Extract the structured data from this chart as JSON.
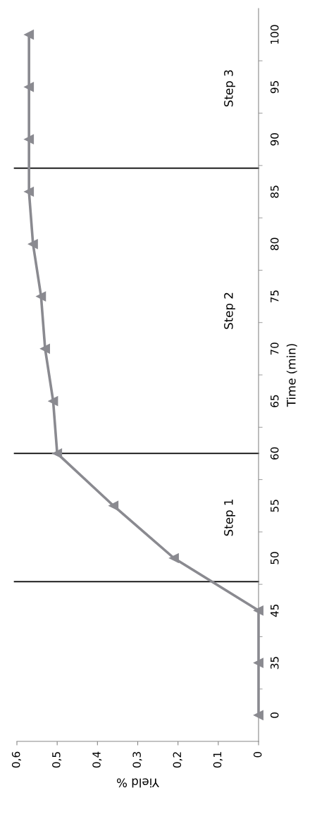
{
  "chart_data": {
    "type": "line",
    "orientation": "horizontal",
    "xlabel": "Yield %",
    "ylabel": "Time (min)",
    "categories": [
      "100",
      "95",
      "90",
      "85",
      "80",
      "75",
      "70",
      "65",
      "60",
      "55",
      "50",
      "45",
      "35",
      "0"
    ],
    "series": [
      {
        "color": "#8a8a90",
        "values": [
          0.57,
          0.57,
          0.57,
          0.57,
          0.56,
          0.54,
          0.53,
          0.51,
          0.5,
          0.36,
          0.21,
          0,
          0,
          0
        ]
      }
    ],
    "marker": "triangle",
    "line_style": "solid",
    "xlim": [
      0.6,
      0
    ],
    "xticks": [
      {
        "value": 0.6,
        "label": "0,6"
      },
      {
        "value": 0.5,
        "label": "0,5"
      },
      {
        "value": 0.4,
        "label": "0,4"
      },
      {
        "value": 0.3,
        "label": "0,3"
      },
      {
        "value": 0.2,
        "label": "0,2"
      },
      {
        "value": 0.1,
        "label": "0,1"
      },
      0
    ],
    "ref_lines": [
      {
        "axis": "y",
        "value": "60",
        "color": "#000000"
      }
    ],
    "annotations": [
      "Step 3",
      "Step 2",
      "Step 1"
    ],
    "grid": false
  }
}
